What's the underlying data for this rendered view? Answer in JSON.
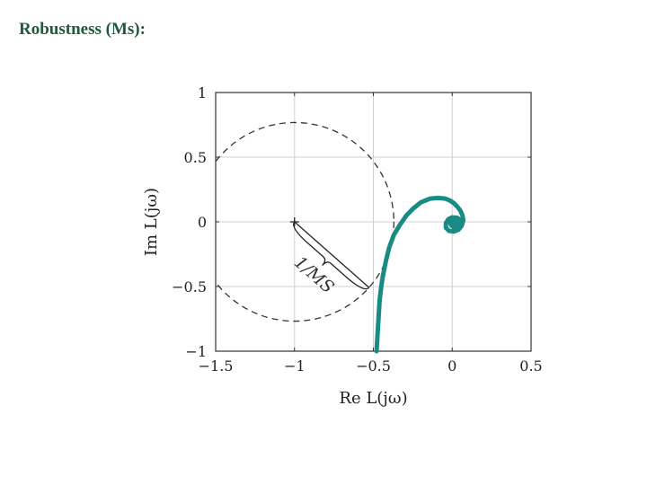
{
  "slide": {
    "title": "Robustness (Ms):"
  },
  "colors": {
    "curve": "#1a8a84",
    "title": "#1f5a3c"
  },
  "chart_data": {
    "type": "line",
    "title": "",
    "xlabel": "Re L(jω)",
    "ylabel": "Im L(jω)",
    "xlim": [
      -1.5,
      0.5
    ],
    "ylim": [
      -1,
      1
    ],
    "xticks": [
      -1.5,
      -1,
      -0.5,
      0,
      0.5
    ],
    "xtick_labels": [
      "−1.5",
      "−1",
      "−0.5",
      "0",
      "0.5"
    ],
    "yticks": [
      -1,
      -0.5,
      0,
      0.5,
      1
    ],
    "ytick_labels": [
      "−1",
      "−0.5",
      "0",
      "0.5",
      "1"
    ],
    "grid": true,
    "critical_point": {
      "x": -1,
      "y": 0
    },
    "circle": {
      "center": [
        -1,
        0
      ],
      "radius": 0.63,
      "style": "dashed"
    },
    "annotation": "1/MS",
    "series": [
      {
        "style": "solid",
        "x": [
          -0.48,
          -0.475,
          -0.47,
          -0.465,
          -0.46,
          -0.45,
          -0.44,
          -0.42,
          -0.4,
          -0.37,
          -0.33,
          -0.29,
          -0.25,
          -0.2,
          -0.14,
          -0.09,
          -0.045,
          -0.015,
          0.01,
          0.03,
          0.05,
          0.065,
          0.07,
          0.06,
          0.04,
          0.01,
          -0.02,
          -0.04,
          -0.04,
          -0.025,
          0.0,
          0.02,
          0.03,
          0.02
        ],
        "y": [
          -1.0,
          -0.9,
          -0.8,
          -0.7,
          -0.6,
          -0.5,
          -0.42,
          -0.3,
          -0.2,
          -0.1,
          -0.02,
          0.05,
          0.1,
          0.15,
          0.18,
          0.185,
          0.18,
          0.165,
          0.145,
          0.12,
          0.09,
          0.05,
          0.01,
          -0.03,
          -0.06,
          -0.075,
          -0.07,
          -0.045,
          -0.01,
          0.02,
          0.035,
          0.03,
          0.01,
          -0.005
        ]
      }
    ]
  }
}
